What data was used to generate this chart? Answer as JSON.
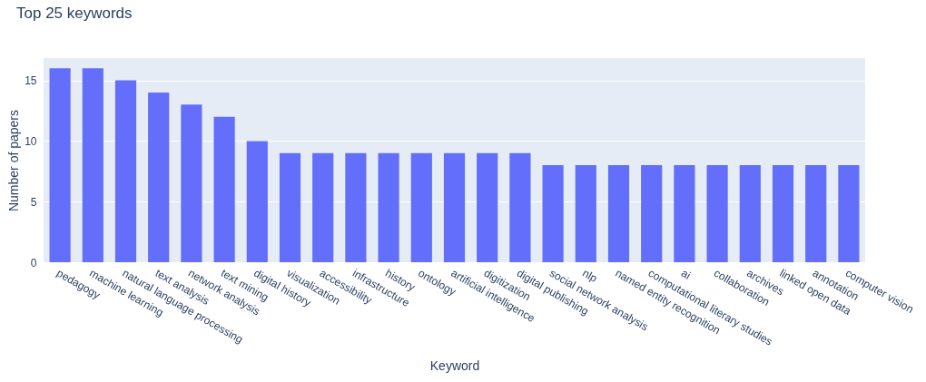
{
  "chart_data": {
    "type": "bar",
    "title": "Top 25 keywords",
    "xlabel": "Keyword",
    "ylabel": "Number of papers",
    "categories": [
      "pedagogy",
      "machine learning",
      "natural language processing",
      "text analysis",
      "network analysis",
      "text mining",
      "digital history",
      "visualization",
      "accessibility",
      "infrastructure",
      "history",
      "ontology",
      "artificial intelligence",
      "digitization",
      "digital publishing",
      "social network analysis",
      "nlp",
      "named entity recognition",
      "computational literary studies",
      "ai",
      "collaboration",
      "archives",
      "linked open data",
      "annotation",
      "computer vision"
    ],
    "values": [
      16,
      16,
      15,
      14,
      13,
      12,
      10,
      9,
      9,
      9,
      9,
      9,
      9,
      9,
      9,
      8,
      8,
      8,
      8,
      8,
      8,
      8,
      8,
      8,
      8
    ],
    "color": "#636efa",
    "ylim": [
      0,
      16.84
    ],
    "yticks": [
      0,
      5,
      10,
      15
    ],
    "grid": "y"
  }
}
